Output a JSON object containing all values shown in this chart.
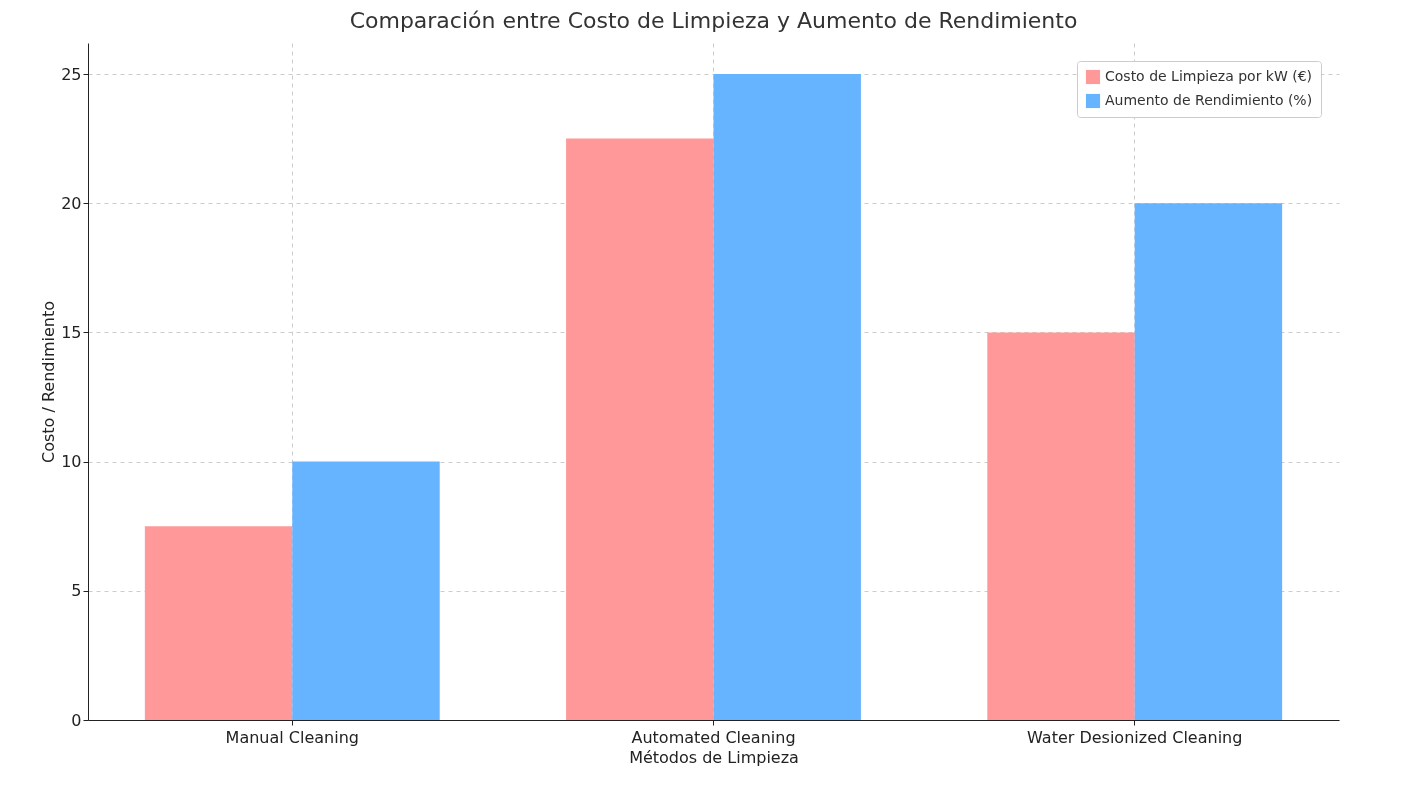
{
  "chart_data": {
    "type": "bar",
    "title": "Comparación entre Costo de Limpieza y Aumento de Rendimiento",
    "xlabel": "Métodos de Limpieza",
    "ylabel": "Costo / Rendimiento",
    "categories": [
      "Manual Cleaning",
      "Automated Cleaning",
      "Water Desionized Cleaning"
    ],
    "series": [
      {
        "name": "Costo de Limpieza por kW (€)",
        "color": "#ff9999",
        "values": [
          7.5,
          22.5,
          15
        ]
      },
      {
        "name": "Aumento de Rendimiento (%)",
        "color": "#66b3ff",
        "values": [
          10,
          25,
          20
        ]
      }
    ],
    "ylim": [
      0,
      26.2
    ],
    "yticks": [
      0,
      5,
      10,
      15,
      20,
      25
    ],
    "grid": true,
    "legend": "top right"
  }
}
